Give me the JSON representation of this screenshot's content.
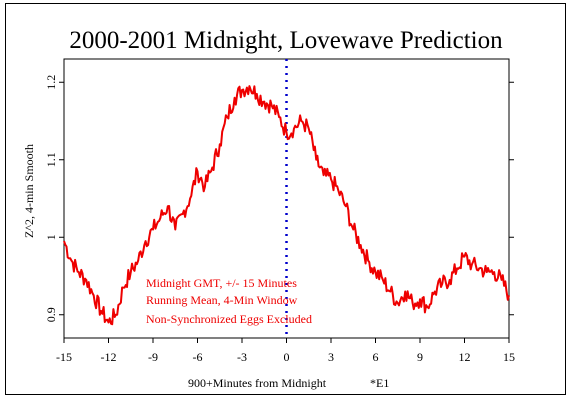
{
  "chart_data": {
    "type": "line",
    "title": "2000-2001 Midnight, Lovewave Prediction",
    "xlabel": "900+Minutes from Midnight",
    "ylabel": "Z^2, 4-min Smooth",
    "corner_note": "*E1",
    "xlim": [
      -15,
      15
    ],
    "ylim": [
      0.87,
      1.23
    ],
    "xticks": [
      -15,
      -12,
      -9,
      -6,
      -3,
      0,
      3,
      6,
      9,
      12,
      15
    ],
    "yticks": [
      0.9,
      1.0,
      1.1,
      1.2
    ],
    "ytick_labels": [
      "0.9",
      "1",
      "1.1",
      "1.2"
    ],
    "grid": false,
    "annotations": [
      "Midnight GMT, +/- 15 Minutes",
      "Running Mean, 4-Min Window",
      "Non-Synchronized Eggs Excluded"
    ],
    "reference_line": {
      "x": 0,
      "style": "dotted",
      "color": "#0000cc"
    },
    "series": [
      {
        "color": "#ee0000",
        "x": [
          -15,
          -14.5,
          -14,
          -13.5,
          -13,
          -12.5,
          -12,
          -11.5,
          -11,
          -10.5,
          -10,
          -9.5,
          -9,
          -8.5,
          -8,
          -7.5,
          -7,
          -6.5,
          -6,
          -5.5,
          -5,
          -4.5,
          -4,
          -3.5,
          -3,
          -2.5,
          -2,
          -1.5,
          -1,
          -0.5,
          0,
          0.5,
          1,
          1.5,
          2,
          2.5,
          3,
          3.5,
          4,
          4.5,
          5,
          5.5,
          6,
          6.5,
          7,
          7.5,
          8,
          8.5,
          9,
          9.5,
          10,
          10.5,
          11,
          11.5,
          12,
          12.5,
          13,
          13.5,
          14,
          14.5,
          15
        ],
        "y": [
          0.995,
          0.97,
          0.955,
          0.945,
          0.925,
          0.905,
          0.89,
          0.9,
          0.935,
          0.955,
          0.97,
          0.995,
          1.01,
          1.025,
          1.04,
          1.01,
          1.03,
          1.05,
          1.085,
          1.065,
          1.09,
          1.12,
          1.155,
          1.18,
          1.19,
          1.195,
          1.185,
          1.175,
          1.17,
          1.155,
          1.135,
          1.14,
          1.15,
          1.14,
          1.1,
          1.08,
          1.075,
          1.06,
          1.04,
          1.01,
          0.99,
          0.97,
          0.955,
          0.945,
          0.93,
          0.915,
          0.93,
          0.915,
          0.92,
          0.91,
          0.93,
          0.94,
          0.945,
          0.96,
          0.975,
          0.965,
          0.96,
          0.955,
          0.955,
          0.945,
          0.925
        ]
      }
    ]
  }
}
